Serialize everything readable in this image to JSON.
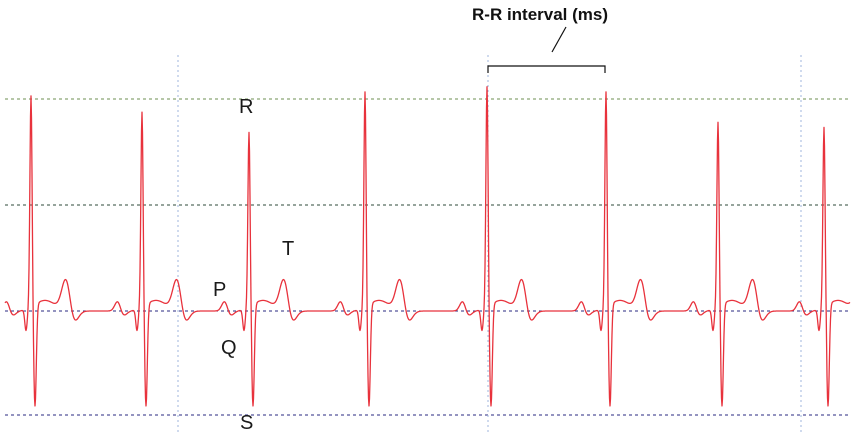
{
  "chart_data": {
    "type": "line",
    "title": "",
    "xlabel": "",
    "ylabel": "",
    "series": [
      {
        "color": "#e8323c",
        "beat_count": 8,
        "r_peak_level": 1.0,
        "t_wave_level": 0.2,
        "s_wave_level": -0.5
      }
    ],
    "wave_labels": [
      "R",
      "T",
      "P",
      "Q",
      "S"
    ],
    "annotation": {
      "label": "R-R interval (ms)"
    },
    "grid": {
      "horizontal_levels": [
        "R",
        "mid",
        "baseline",
        "S"
      ],
      "horizontal_colors": [
        "#6e8f52",
        "#2c4a3a",
        "#2a2a80",
        "#2a2a80"
      ],
      "vertical_color": "#9fb4dc"
    },
    "colors": {
      "trace": "#e8323c",
      "background": "#ffffff"
    }
  }
}
